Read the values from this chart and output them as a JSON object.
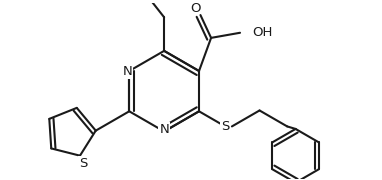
{
  "bg_color": "#ffffff",
  "line_color": "#1a1a1a",
  "lw": 1.5,
  "figsize": [
    3.82,
    1.8
  ],
  "dpi": 100,
  "xlim": [
    -1.55,
    1.95
  ],
  "ylim": [
    -1.05,
    1.05
  ]
}
